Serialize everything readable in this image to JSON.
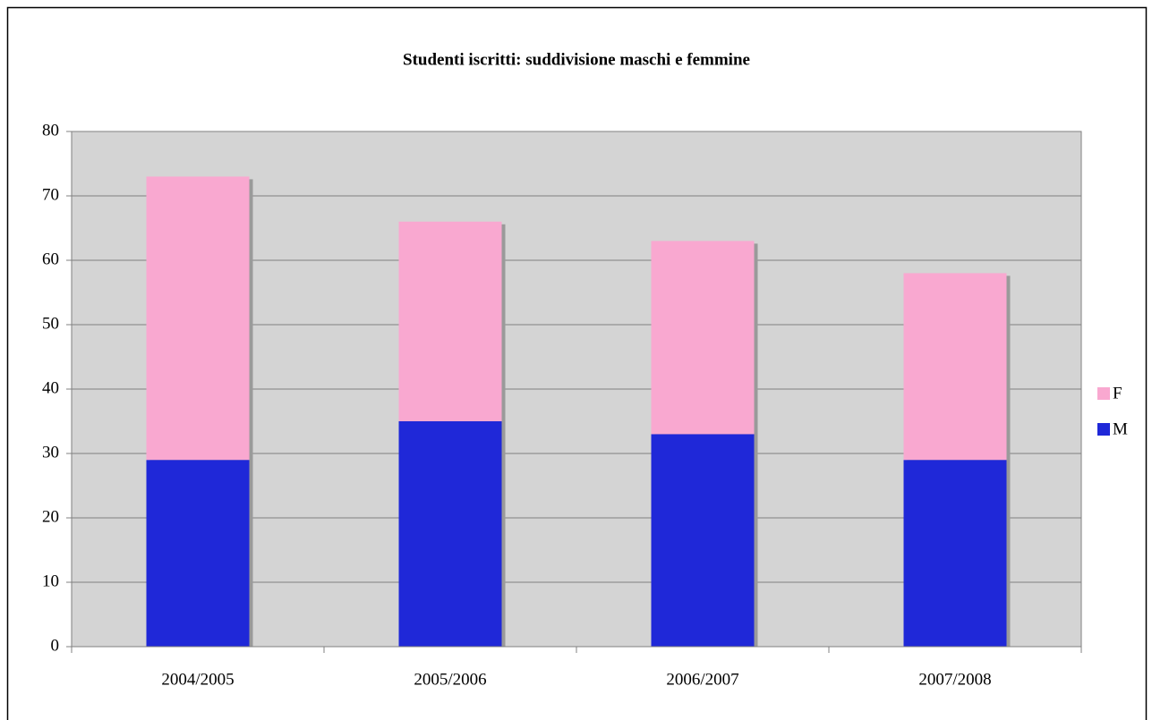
{
  "chart_data": {
    "type": "stacked-bar",
    "title": "Studenti iscritti: suddivisione maschi e femmine",
    "categories": [
      "2004/2005",
      "2005/2006",
      "2006/2007",
      "2007/2008"
    ],
    "series": [
      {
        "name": "M",
        "color": "#1f28d8",
        "values": [
          29,
          35,
          33,
          29
        ]
      },
      {
        "name": "F",
        "color": "#f9a8d0",
        "values": [
          44,
          31,
          30,
          29
        ]
      }
    ],
    "ylim": [
      0,
      80
    ],
    "yticks": [
      0,
      10,
      20,
      30,
      40,
      50,
      60,
      70,
      80
    ],
    "grid": true,
    "legend": "right"
  }
}
